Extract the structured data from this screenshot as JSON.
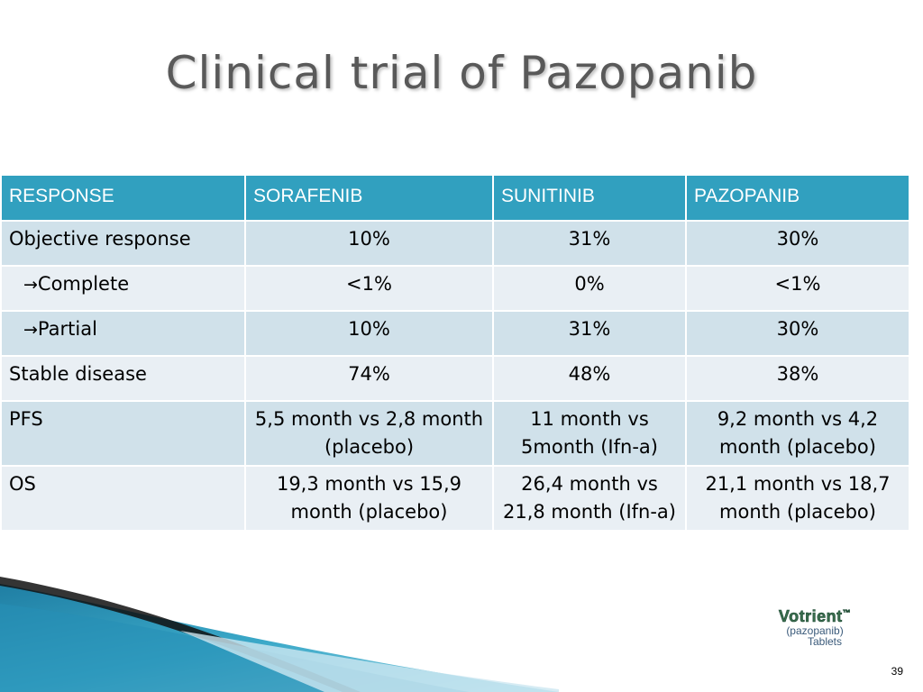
{
  "slide": {
    "title": "Clinical trial of Pazopanib",
    "page_number": "39"
  },
  "table": {
    "headers": [
      "RESPONSE",
      "SORAFENIB",
      "SUNITINIB",
      "PAZOPANIB"
    ],
    "rows": [
      {
        "label": "Objective response",
        "cells": [
          "10%",
          "31%",
          "30%"
        ]
      },
      {
        "label": "Complete",
        "arrow": "→",
        "cells": [
          "<1%",
          "0%",
          "<1%"
        ]
      },
      {
        "label": "Partial",
        "arrow": "→",
        "cells": [
          "10%",
          "31%",
          "30%"
        ]
      },
      {
        "label": "Stable disease",
        "cells": [
          "74%",
          "48%",
          "38%"
        ]
      },
      {
        "label": "PFS",
        "cells": [
          "5,5 month vs 2,8 month (placebo)",
          "11 month vs 5month (Ifn-a)",
          "9,2 month vs 4,2 month (placebo)"
        ]
      },
      {
        "label": "OS",
        "cells": [
          "19,3 month vs 15,9 month (placebo)",
          "26,4 month vs 21,8 month (Ifn-a)",
          "21,1 month vs 18,7 month (placebo)"
        ]
      }
    ]
  },
  "logo": {
    "brand": "Votrient",
    "trademark": "™",
    "line2": "(pazopanib)",
    "line3": "Tablets"
  },
  "colors": {
    "header_bg": "#31a0bf",
    "row_odd": "#d0e1ea",
    "row_even": "#e9eff4",
    "title": "#595959"
  }
}
